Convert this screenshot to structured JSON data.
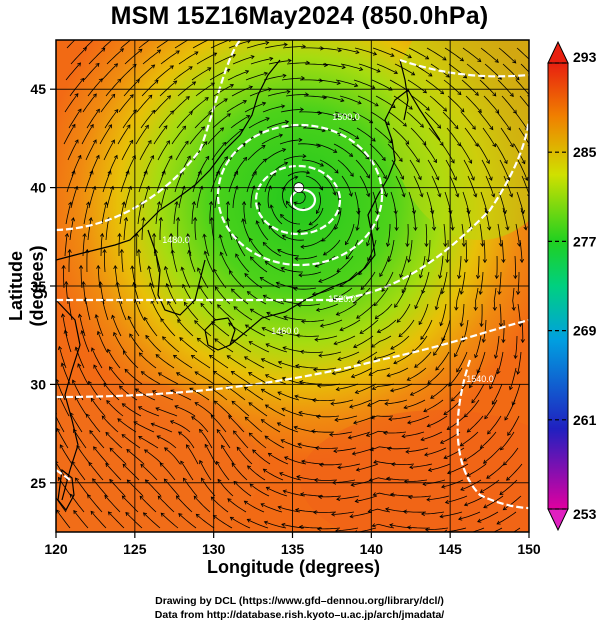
{
  "title": "MSM 15Z16May2024 (850.0hPa)",
  "x_axis": {
    "label": "Longitude (degrees)",
    "ticks": [
      "120",
      "125",
      "130",
      "135",
      "140",
      "145",
      "150"
    ],
    "range": [
      120,
      150
    ]
  },
  "y_axis": {
    "label": "Latitude (degrees)",
    "ticks": [
      "25",
      "30",
      "35",
      "40",
      "45"
    ],
    "range": [
      22.5,
      47.5
    ]
  },
  "colorbar": {
    "labels": [
      "293",
      "285",
      "277",
      "269",
      "261",
      "253"
    ],
    "range": [
      253,
      293
    ],
    "colors": [
      "#e8005a",
      "#3030d0",
      "#00d0d0",
      "#20d020",
      "#f0e000",
      "#f05020"
    ]
  },
  "contour_labels": [
    "1460.0",
    "1480.0",
    "1500.0",
    "1520.0",
    "1540.0"
  ],
  "low_center": {
    "lon": 135.4,
    "lat": 40.0
  },
  "credits": {
    "line1": "Drawing by DCL (https://www.gfd–dennou.org/library/dcl/)",
    "line2": "Data from http://database.rish.kyoto–u.ac.jp/arch/jmadata/"
  }
}
